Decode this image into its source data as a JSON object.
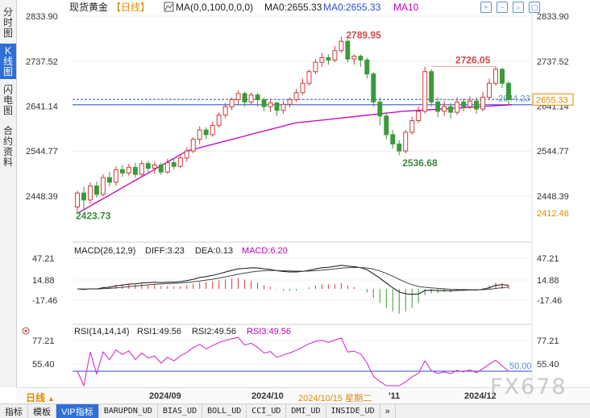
{
  "left_tabs": [
    {
      "label": "分时图",
      "active": false
    },
    {
      "label": "K线图",
      "active": true
    },
    {
      "label": "闪电图",
      "active": false
    },
    {
      "label": "合约资料",
      "active": false
    }
  ],
  "header": {
    "symbol": "现货黄金",
    "period": "【日线】",
    "ma_icon": "line-chart-icon",
    "ma_params": "MA(0,0,100,0,0,0)",
    "ma0": "MA0:2655.33",
    "ma0b": "MA0:2655.33",
    "ma10": "MA10"
  },
  "toolbar_icons": [
    "plus-icon",
    "minus-icon",
    "zoom-icon",
    "fullscreen-icon"
  ],
  "price_panel": {
    "y_ticks": [
      2833.9,
      2737.52,
      2641.14,
      2544.77,
      2448.39
    ],
    "y_tick_labels": [
      "2833.90",
      "2737.52",
      "2641.14",
      "2544.77",
      "2448.39"
    ],
    "right_extra_label": "2412.46",
    "current_price_label": "2655.33",
    "ma_label": "2644.23",
    "annotations": [
      {
        "text": "2789.95",
        "color": "#d04a4a"
      },
      {
        "text": "2726.05",
        "color": "#d04a4a"
      },
      {
        "text": "2536.68",
        "color": "#3a8a3a"
      },
      {
        "text": "2423.73",
        "color": "#3a8a3a"
      }
    ]
  },
  "macd_panel": {
    "title": "MACD(26,12,9)",
    "diff": "DIFF:3.23",
    "dea": "DEA:0.13",
    "macd": "MACD:6.20",
    "y_tick_labels": [
      "47.21",
      "14.88",
      "-17.46"
    ]
  },
  "rsi_panel": {
    "title": "RSI(14,14,14)",
    "rsi1": "RSI1:49.56",
    "rsi2": "RSI2:49.56",
    "rsi3": "RSI3:49.56",
    "y_tick_labels": [
      "77.21",
      "55.40"
    ],
    "level_label": "50.00"
  },
  "date_axis": {
    "period_button": "日线",
    "labels": [
      "2024/09",
      "2024/10",
      "2024/10/15 星期二",
      "'11",
      "2024/12"
    ]
  },
  "bottom_tabs": [
    {
      "label": "指标"
    },
    {
      "label": "模板"
    },
    {
      "label": "VIP指标",
      "active": true
    },
    {
      "label": "BARUPDN_UD"
    },
    {
      "label": "BIAS_UD"
    },
    {
      "label": "BOLL_UD"
    },
    {
      "label": "CCI_UD"
    },
    {
      "label": "DMI_UD"
    },
    {
      "label": "INSIDE_UD"
    },
    {
      "label": "»"
    }
  ],
  "watermark": "FX678",
  "colors": {
    "up": "#d23a3a",
    "down": "#3a9a3a",
    "ma": "#c000c0",
    "ma_line": "#2a50c8",
    "rsi": "#d020d0"
  },
  "chart_data": {
    "type": "candlestick",
    "title": "现货黄金 日线",
    "ylim": [
      2412.46,
      2833.9
    ],
    "price_levels": {
      "high_marker": 2789.95,
      "second_high": 2726.05,
      "low_marker": 2536.68,
      "start_low": 2423.73,
      "current": 2655.33,
      "ma": 2644.23
    },
    "x_labels": [
      "2024/09",
      "2024/10",
      "2024/11",
      "2024/12"
    ],
    "candles": [
      [
        2425,
        2455,
        2410,
        2460
      ],
      [
        2455,
        2440,
        2420,
        2468
      ],
      [
        2440,
        2470,
        2432,
        2478
      ],
      [
        2470,
        2452,
        2445,
        2480
      ],
      [
        2452,
        2488,
        2448,
        2495
      ],
      [
        2488,
        2478,
        2470,
        2500
      ],
      [
        2478,
        2505,
        2470,
        2512
      ],
      [
        2505,
        2498,
        2490,
        2515
      ],
      [
        2498,
        2510,
        2492,
        2518
      ],
      [
        2510,
        2495,
        2488,
        2520
      ],
      [
        2495,
        2518,
        2490,
        2525
      ],
      [
        2518,
        2508,
        2500,
        2524
      ],
      [
        2508,
        2515,
        2496,
        2522
      ],
      [
        2515,
        2500,
        2494,
        2520
      ],
      [
        2500,
        2520,
        2496,
        2528
      ],
      [
        2520,
        2512,
        2505,
        2530
      ],
      [
        2512,
        2530,
        2508,
        2535
      ],
      [
        2530,
        2545,
        2522,
        2552
      ],
      [
        2545,
        2570,
        2540,
        2575
      ],
      [
        2570,
        2590,
        2560,
        2598
      ],
      [
        2590,
        2580,
        2570,
        2596
      ],
      [
        2580,
        2600,
        2575,
        2608
      ],
      [
        2600,
        2622,
        2595,
        2628
      ],
      [
        2622,
        2640,
        2615,
        2648
      ],
      [
        2640,
        2655,
        2632,
        2660
      ],
      [
        2655,
        2668,
        2645,
        2675
      ],
      [
        2668,
        2650,
        2640,
        2672
      ],
      [
        2650,
        2665,
        2645,
        2670
      ],
      [
        2665,
        2655,
        2640,
        2670
      ],
      [
        2655,
        2640,
        2630,
        2660
      ],
      [
        2640,
        2648,
        2628,
        2655
      ],
      [
        2648,
        2632,
        2620,
        2650
      ],
      [
        2632,
        2645,
        2625,
        2652
      ],
      [
        2645,
        2655,
        2638,
        2660
      ],
      [
        2655,
        2670,
        2650,
        2678
      ],
      [
        2670,
        2690,
        2665,
        2700
      ],
      [
        2690,
        2715,
        2685,
        2720
      ],
      [
        2715,
        2735,
        2710,
        2742
      ],
      [
        2735,
        2745,
        2725,
        2755
      ],
      [
        2745,
        2740,
        2730,
        2752
      ],
      [
        2740,
        2760,
        2735,
        2770
      ],
      [
        2760,
        2780,
        2755,
        2790
      ],
      [
        2780,
        2742,
        2735,
        2785
      ],
      [
        2742,
        2748,
        2730,
        2752
      ],
      [
        2748,
        2740,
        2725,
        2752
      ],
      [
        2740,
        2710,
        2700,
        2745
      ],
      [
        2710,
        2650,
        2640,
        2715
      ],
      [
        2650,
        2620,
        2600,
        2660
      ],
      [
        2620,
        2580,
        2570,
        2628
      ],
      [
        2580,
        2560,
        2550,
        2590
      ],
      [
        2560,
        2545,
        2536,
        2568
      ],
      [
        2545,
        2585,
        2540,
        2590
      ],
      [
        2585,
        2610,
        2580,
        2618
      ],
      [
        2610,
        2630,
        2605,
        2640
      ],
      [
        2630,
        2715,
        2625,
        2725
      ],
      [
        2715,
        2650,
        2640,
        2720
      ],
      [
        2650,
        2630,
        2618,
        2660
      ],
      [
        2630,
        2640,
        2620,
        2652
      ],
      [
        2640,
        2628,
        2615,
        2648
      ],
      [
        2628,
        2650,
        2622,
        2660
      ],
      [
        2650,
        2640,
        2630,
        2658
      ],
      [
        2640,
        2652,
        2635,
        2662
      ],
      [
        2652,
        2635,
        2625,
        2660
      ],
      [
        2635,
        2660,
        2630,
        2672
      ],
      [
        2660,
        2690,
        2655,
        2700
      ],
      [
        2690,
        2720,
        2685,
        2726
      ],
      [
        2720,
        2690,
        2680,
        2724
      ],
      [
        2690,
        2655,
        2645,
        2695
      ]
    ],
    "ma_series": [
      2412.46,
      2544.77,
      2605,
      2630,
      2644.23
    ],
    "macd": {
      "diff_last": 3.23,
      "dea_last": 0.13,
      "macd_last": 6.2
    },
    "rsi": {
      "rsi1": 49.56,
      "rsi2": 49.56,
      "rsi3": 49.56,
      "level": 50.0
    }
  }
}
